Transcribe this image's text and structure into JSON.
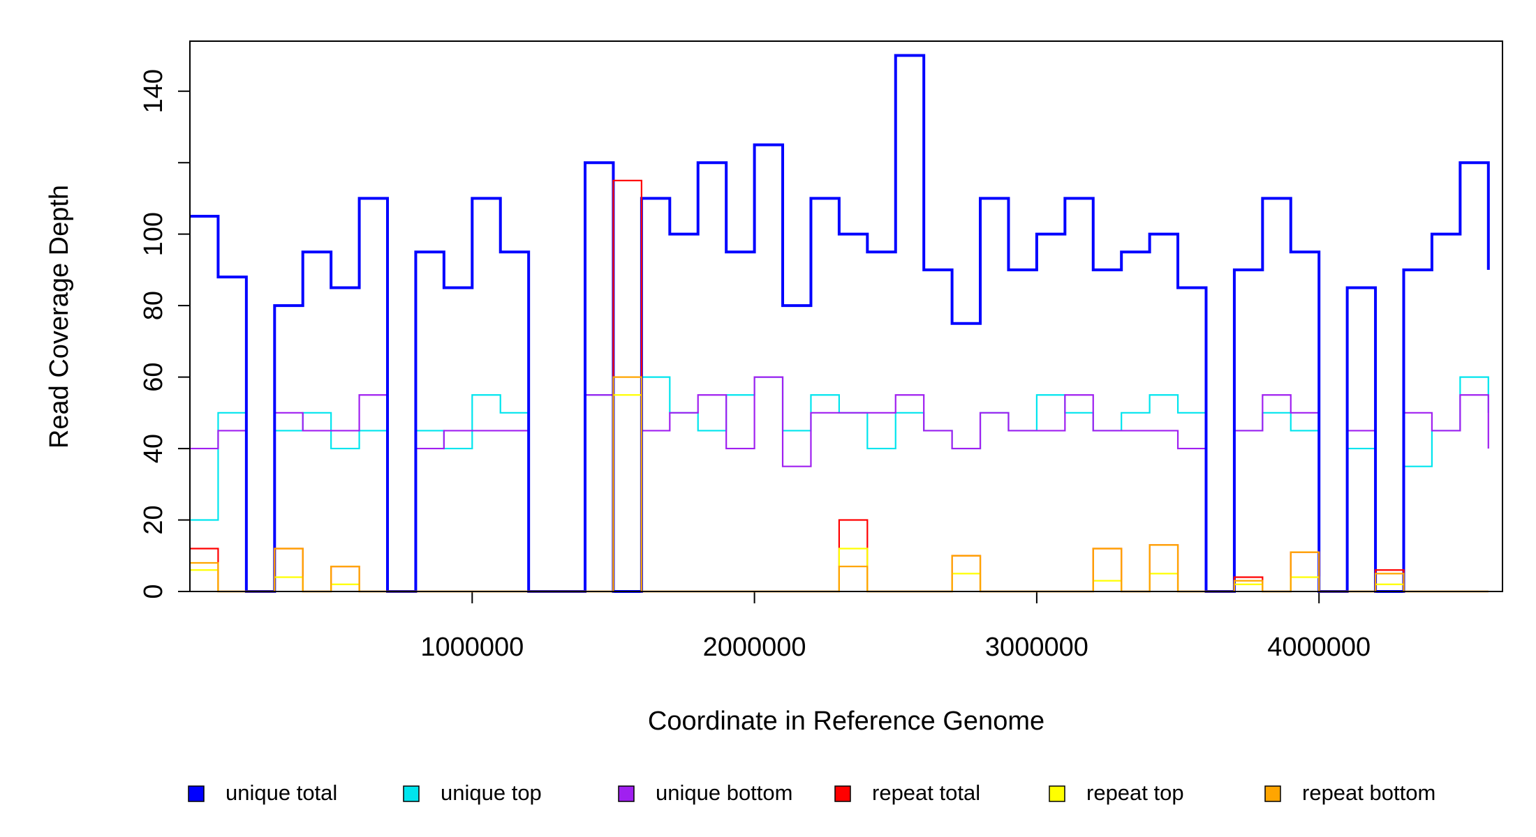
{
  "chart_data": {
    "type": "line",
    "step": true,
    "x_label": "Coordinate in Reference Genome",
    "y_label": "Read Coverage Depth",
    "x": [
      0,
      100000,
      200000,
      300000,
      400000,
      500000,
      600000,
      700000,
      800000,
      900000,
      1000000,
      1100000,
      1200000,
      1300000,
      1400000,
      1500000,
      1600000,
      1700000,
      1800000,
      1900000,
      2000000,
      2100000,
      2200000,
      2300000,
      2400000,
      2500000,
      2600000,
      2700000,
      2800000,
      2900000,
      3000000,
      3100000,
      3200000,
      3300000,
      3400000,
      3500000,
      3600000,
      3700000,
      3800000,
      3900000,
      4000000,
      4100000,
      4200000,
      4300000,
      4400000,
      4500000,
      4600000
    ],
    "xlim": [
      0,
      4650000
    ],
    "xticks": [
      1000000,
      2000000,
      3000000,
      4000000
    ],
    "ylim": [
      0,
      154
    ],
    "yticks": [
      0,
      20,
      40,
      60,
      80,
      100,
      {
        "value": 120,
        "label": null
      },
      140
    ],
    "legend": "bottom",
    "series": [
      {
        "name": "unique top",
        "color": "#00e5ee",
        "values": [
          20,
          50,
          0,
          45,
          50,
          40,
          45,
          0,
          45,
          40,
          55,
          50,
          0,
          0,
          55,
          0,
          60,
          50,
          45,
          55,
          60,
          45,
          55,
          50,
          40,
          50,
          45,
          40,
          50,
          45,
          55,
          50,
          45,
          50,
          55,
          50,
          0,
          45,
          50,
          45,
          0,
          40,
          0,
          35,
          45,
          60,
          50
        ]
      },
      {
        "name": "unique bottom",
        "color": "#a020f0",
        "values": [
          40,
          45,
          0,
          50,
          45,
          45,
          55,
          0,
          40,
          45,
          45,
          45,
          0,
          0,
          55,
          0,
          45,
          50,
          55,
          40,
          60,
          35,
          50,
          50,
          50,
          55,
          45,
          40,
          50,
          45,
          45,
          55,
          45,
          45,
          45,
          40,
          0,
          45,
          55,
          50,
          0,
          45,
          0,
          50,
          45,
          55,
          40
        ]
      },
      {
        "name": "unique total",
        "color": "#0000ff",
        "values": [
          105,
          88,
          0,
          80,
          95,
          85,
          110,
          0,
          95,
          85,
          110,
          95,
          0,
          0,
          120,
          0,
          110,
          100,
          120,
          95,
          125,
          80,
          110,
          100,
          95,
          150,
          90,
          75,
          110,
          90,
          100,
          110,
          90,
          95,
          100,
          85,
          0,
          90,
          110,
          95,
          0,
          85,
          0,
          90,
          100,
          120,
          90
        ]
      },
      {
        "name": "repeat total",
        "color": "#ff0000",
        "values": [
          12,
          0,
          0,
          12,
          0,
          7,
          0,
          0,
          0,
          0,
          0,
          0,
          0,
          0,
          0,
          115,
          0,
          0,
          0,
          0,
          0,
          0,
          0,
          20,
          0,
          0,
          0,
          10,
          0,
          0,
          0,
          0,
          12,
          0,
          13,
          0,
          0,
          4,
          0,
          11,
          0,
          0,
          6,
          0,
          0,
          0,
          0
        ]
      },
      {
        "name": "repeat top",
        "color": "#ffff00",
        "values": [
          6,
          0,
          0,
          4,
          0,
          2,
          0,
          0,
          0,
          0,
          0,
          0,
          0,
          0,
          0,
          55,
          0,
          0,
          0,
          0,
          0,
          0,
          0,
          12,
          0,
          0,
          0,
          5,
          0,
          0,
          0,
          0,
          3,
          0,
          5,
          0,
          0,
          2,
          0,
          4,
          0,
          0,
          2,
          0,
          0,
          0,
          0
        ]
      },
      {
        "name": "repeat bottom",
        "color": "#ffa500",
        "values": [
          8,
          0,
          0,
          12,
          0,
          7,
          0,
          0,
          0,
          0,
          0,
          0,
          0,
          0,
          0,
          60,
          0,
          0,
          0,
          0,
          0,
          0,
          0,
          7,
          0,
          0,
          0,
          10,
          0,
          0,
          0,
          0,
          12,
          0,
          13,
          0,
          0,
          3,
          0,
          11,
          0,
          0,
          5,
          0,
          0,
          0,
          0
        ]
      }
    ]
  }
}
